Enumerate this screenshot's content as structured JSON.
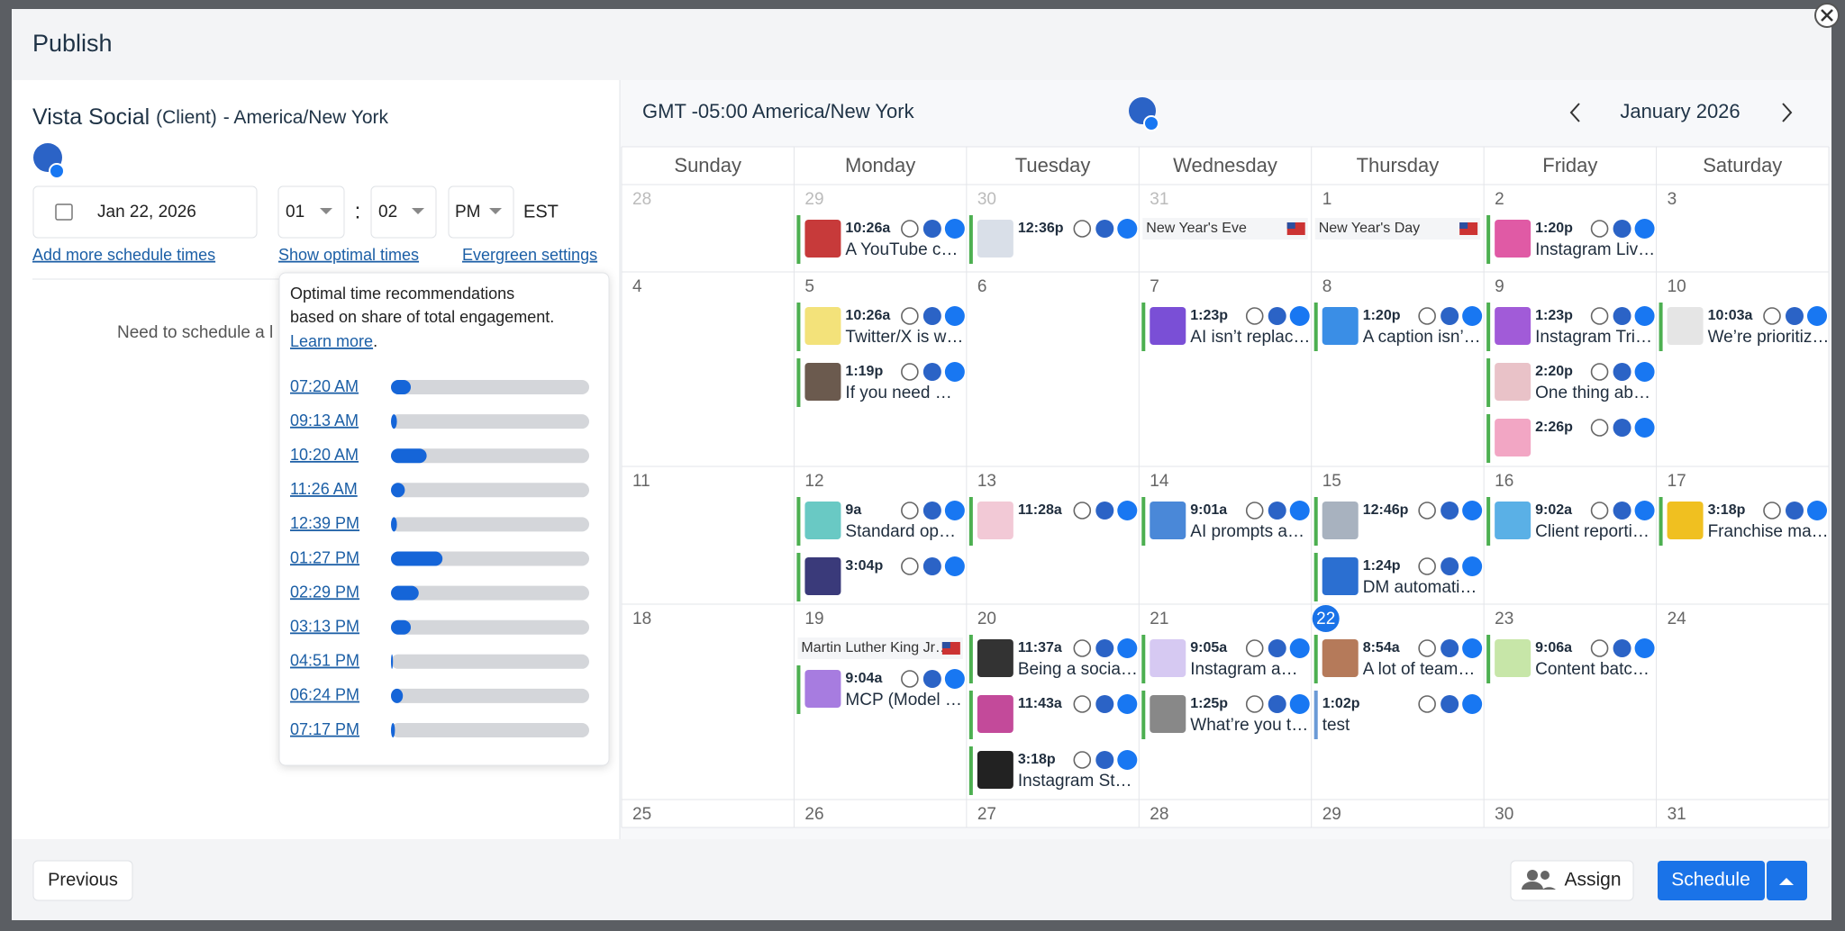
{
  "header": {
    "title": "Publish"
  },
  "left": {
    "name": "Vista Social",
    "tag": "(Client)",
    "timezone": "- America/New York",
    "date": "Jan 22, 2026",
    "hour": "01",
    "colon": ":",
    "minute": "02",
    "ampm": "PM",
    "tz": "EST",
    "links": [
      "Add more schedule times",
      "Show optimal times",
      "Evergreen settings"
    ],
    "message": "Need to schedule a l",
    "popup": {
      "lines": [
        "Optimal time recommendations",
        "based on share of total engagement."
      ],
      "learn_more": "Learn more",
      "period": ".",
      "times": [
        {
          "time": "07:20 AM",
          "share": 10
        },
        {
          "time": "09:13 AM",
          "share": 3
        },
        {
          "time": "10:20 AM",
          "share": 18
        },
        {
          "time": "11:26 AM",
          "share": 7
        },
        {
          "time": "12:39 PM",
          "share": 3
        },
        {
          "time": "01:27 PM",
          "share": 26
        },
        {
          "time": "02:29 PM",
          "share": 14
        },
        {
          "time": "03:13 PM",
          "share": 10
        },
        {
          "time": "04:51 PM",
          "share": 1
        },
        {
          "time": "06:24 PM",
          "share": 6
        },
        {
          "time": "07:17 PM",
          "share": 2
        }
      ]
    }
  },
  "calendar": {
    "timezone": "GMT -05:00 America/New York",
    "month": "January 2026",
    "weekdays": [
      "Sunday",
      "Monday",
      "Tuesday",
      "Wednesday",
      "Thursday",
      "Friday",
      "Saturday"
    ],
    "weeks": [
      [
        {
          "day": "28",
          "other_month": true,
          "events": []
        },
        {
          "day": "29",
          "other_month": true,
          "events": [
            {
              "time": "10:26a",
              "title": "A YouTube c…"
            }
          ]
        },
        {
          "day": "30",
          "other_month": true,
          "events": [
            {
              "time": "12:36p"
            }
          ]
        },
        {
          "day": "31",
          "other_month": true,
          "events": [
            {
              "holiday": "New Year's Eve"
            }
          ]
        },
        {
          "day": "1",
          "events": [
            {
              "holiday": "New Year's Day"
            }
          ]
        },
        {
          "day": "2",
          "events": [
            {
              "time": "1:20p",
              "title": "Instagram Liv…"
            }
          ]
        },
        {
          "day": "3",
          "events": []
        }
      ],
      [
        {
          "day": "4",
          "events": []
        },
        {
          "day": "5",
          "events": [
            {
              "time": "10:26a",
              "title": "Twitter/X is w…"
            },
            {
              "time": "1:19p",
              "title": "If you need …"
            }
          ]
        },
        {
          "day": "6",
          "events": []
        },
        {
          "day": "7",
          "events": [
            {
              "time": "1:23p",
              "title": "AI isn’t replac…"
            }
          ]
        },
        {
          "day": "8",
          "events": [
            {
              "time": "1:20p",
              "title": "A caption isn’…"
            }
          ]
        },
        {
          "day": "9",
          "events": [
            {
              "time": "1:23p",
              "title": "Instagram Tri…"
            },
            {
              "time": "2:20p",
              "title": "One thing ab…"
            },
            {
              "time": "2:26p"
            }
          ]
        },
        {
          "day": "10",
          "events": [
            {
              "time": "10:03a",
              "title": "We’re prioritiz…"
            }
          ]
        }
      ],
      [
        {
          "day": "11",
          "events": []
        },
        {
          "day": "12",
          "events": [
            {
              "time": "9a",
              "title": "Standard op…"
            },
            {
              "time": "3:04p"
            }
          ]
        },
        {
          "day": "13",
          "events": [
            {
              "time": "11:28a"
            }
          ]
        },
        {
          "day": "14",
          "events": [
            {
              "time": "9:01a",
              "title": "AI prompts a…"
            }
          ]
        },
        {
          "day": "15",
          "events": [
            {
              "time": "12:46p"
            },
            {
              "time": "1:24p",
              "title": "DM automati…"
            }
          ]
        },
        {
          "day": "16",
          "events": [
            {
              "time": "9:02a",
              "title": "Client reporti…"
            }
          ]
        },
        {
          "day": "17",
          "events": [
            {
              "time": "3:18p",
              "title": "Franchise ma…"
            }
          ]
        }
      ],
      [
        {
          "day": "18",
          "events": []
        },
        {
          "day": "19",
          "events": [
            {
              "holiday": "Martin Luther King Jr…"
            },
            {
              "time": "9:04a",
              "title": "MCP (Model …"
            }
          ]
        },
        {
          "day": "20",
          "events": [
            {
              "time": "11:37a",
              "title": "Being a socia…"
            },
            {
              "time": "11:43a"
            },
            {
              "time": "3:18p",
              "title": "Instagram St…"
            }
          ]
        },
        {
          "day": "21",
          "events": [
            {
              "time": "9:05a",
              "title": "Instagram a…"
            },
            {
              "time": "1:25p",
              "title": "What’re you t…"
            }
          ]
        },
        {
          "day": "22",
          "today": true,
          "events": [
            {
              "time": "8:54a",
              "title": "A lot of team…"
            },
            {
              "time": "1:02p",
              "title": "test",
              "color": "#6a9ad6",
              "no_thumb": true
            }
          ]
        },
        {
          "day": "23",
          "events": [
            {
              "time": "9:06a",
              "title": "Content batc…"
            }
          ]
        },
        {
          "day": "24",
          "events": []
        }
      ],
      [
        {
          "day": "25",
          "events": []
        },
        {
          "day": "26",
          "events": []
        },
        {
          "day": "27",
          "events": []
        },
        {
          "day": "28",
          "events": []
        },
        {
          "day": "29",
          "events": []
        },
        {
          "day": "30",
          "events": []
        },
        {
          "day": "31",
          "events": []
        }
      ]
    ]
  },
  "footer": {
    "previous": "Previous",
    "assign": "Assign",
    "schedule": "Schedule"
  }
}
